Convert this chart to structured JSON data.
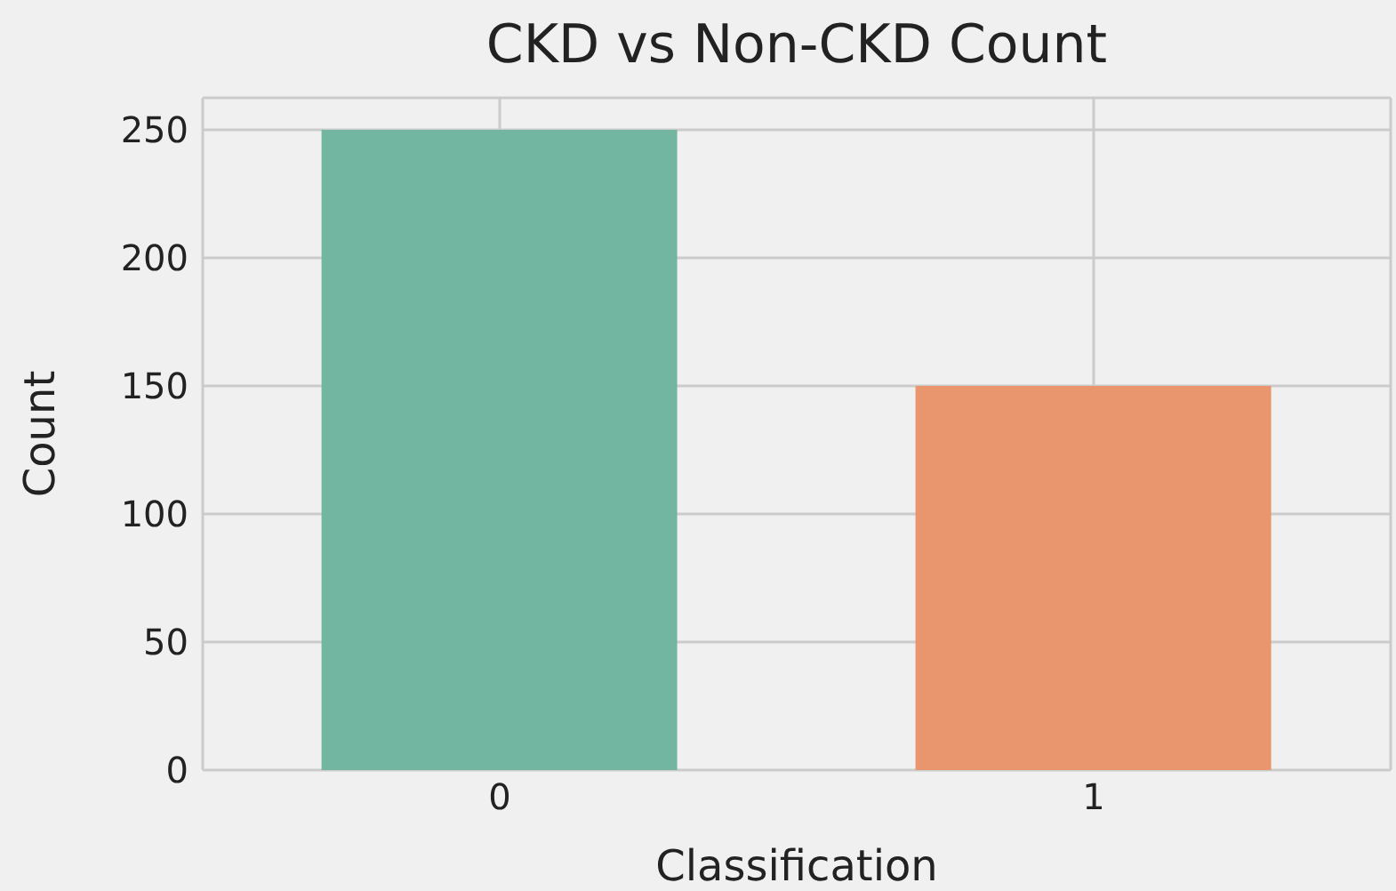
{
  "chart_data": {
    "type": "bar",
    "title": "CKD vs Non-CKD Count",
    "xlabel": "Classification",
    "ylabel": "Count",
    "categories": [
      "0",
      "1"
    ],
    "values": [
      250,
      150
    ],
    "colors": [
      "#72b6a1",
      "#e9966f"
    ],
    "ylim": [
      0,
      262.5
    ],
    "yticks": [
      0,
      50,
      100,
      150,
      200,
      250
    ],
    "grid": true
  }
}
